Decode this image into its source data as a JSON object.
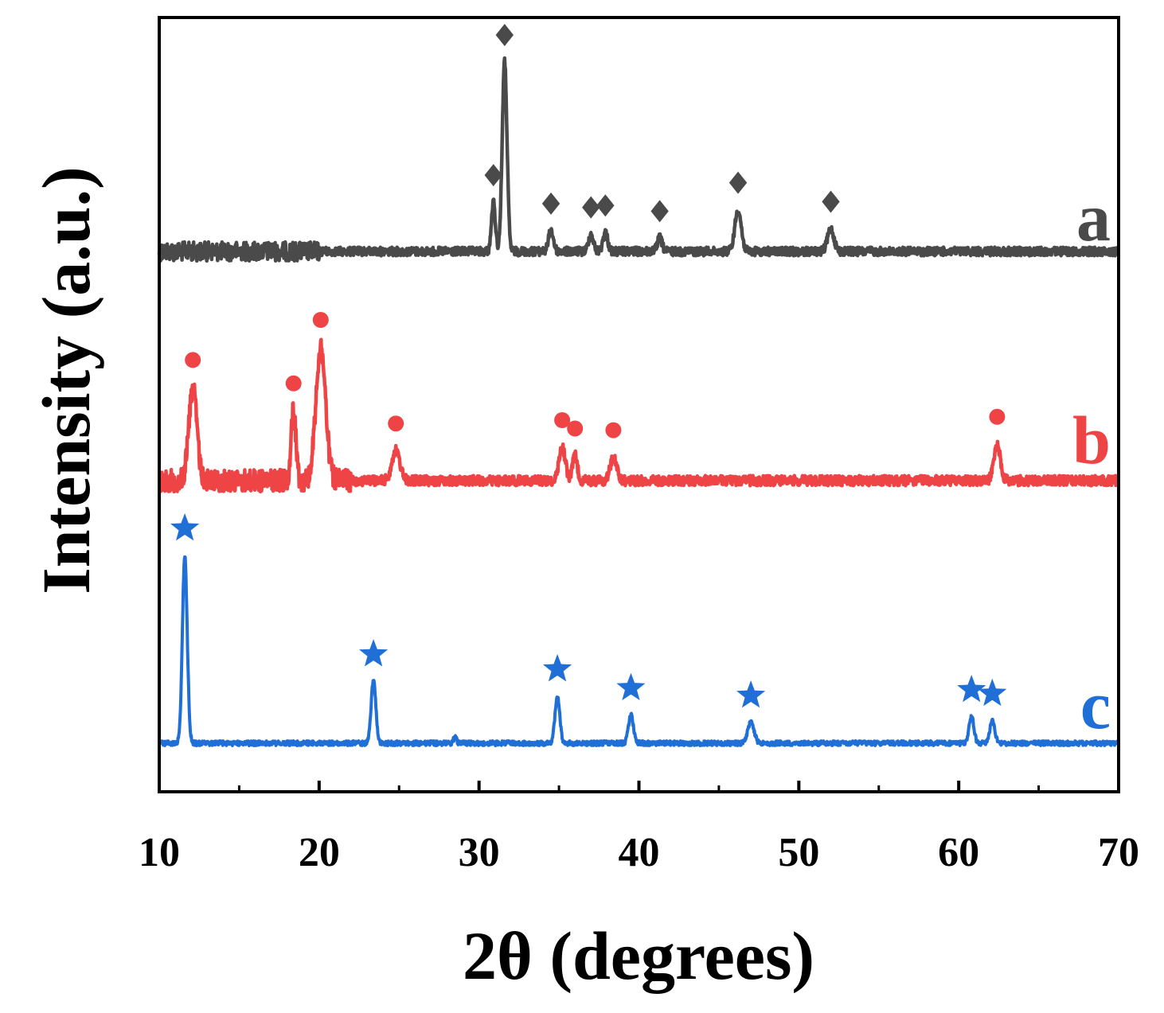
{
  "chart_data": {
    "type": "line",
    "title": "",
    "xlabel": "2θ (degrees)",
    "ylabel": "Intensity (a.u.)",
    "xlim": [
      10,
      70
    ],
    "xticks": [
      10,
      20,
      30,
      40,
      50,
      60,
      70
    ],
    "xtick_labels": [
      "10",
      "20",
      "30",
      "40",
      "50",
      "60",
      "70"
    ],
    "yticks_visible": false,
    "series": [
      {
        "name": "a",
        "color": "#4a4a4a",
        "marker": "diamond",
        "baseline": 0,
        "noise": 0.09,
        "noise_until": 20,
        "peaks": [
          {
            "x": 30.9,
            "h": 0.26,
            "w": 0.12,
            "mark": true
          },
          {
            "x": 31.6,
            "h": 1.0,
            "w": 0.15,
            "mark": true
          },
          {
            "x": 34.5,
            "h": 0.11,
            "w": 0.15,
            "mark": true
          },
          {
            "x": 37.0,
            "h": 0.09,
            "w": 0.15,
            "mark": true
          },
          {
            "x": 37.9,
            "h": 0.1,
            "w": 0.15,
            "mark": true
          },
          {
            "x": 41.3,
            "h": 0.07,
            "w": 0.15,
            "mark": true
          },
          {
            "x": 46.2,
            "h": 0.22,
            "w": 0.2,
            "mark": true
          },
          {
            "x": 52.0,
            "h": 0.12,
            "w": 0.2,
            "mark": true
          }
        ]
      },
      {
        "name": "b",
        "color": "#ee4446",
        "marker": "circle",
        "baseline": 0,
        "noise": 0.12,
        "noise_until": 22,
        "peaks": [
          {
            "x": 12.1,
            "h": 0.56,
            "w": 0.25,
            "mark": true
          },
          {
            "x": 18.4,
            "h": 0.42,
            "w": 0.15,
            "mark": true
          },
          {
            "x": 20.1,
            "h": 0.8,
            "w": 0.3,
            "mark": true
          },
          {
            "x": 24.8,
            "h": 0.18,
            "w": 0.25,
            "mark": true
          },
          {
            "x": 35.2,
            "h": 0.2,
            "w": 0.2,
            "mark": true
          },
          {
            "x": 36.0,
            "h": 0.15,
            "w": 0.15,
            "mark": true
          },
          {
            "x": 38.4,
            "h": 0.14,
            "w": 0.2,
            "mark": true
          },
          {
            "x": 62.4,
            "h": 0.22,
            "w": 0.2,
            "mark": true
          }
        ]
      },
      {
        "name": "c",
        "color": "#1f6fd6",
        "marker": "star",
        "baseline": 0,
        "noise": 0.015,
        "noise_until": 70,
        "peaks": [
          {
            "x": 11.6,
            "h": 1.0,
            "w": 0.15,
            "mark": true
          },
          {
            "x": 23.4,
            "h": 0.33,
            "w": 0.15,
            "mark": true
          },
          {
            "x": 28.5,
            "h": 0.03,
            "w": 0.1,
            "mark": false
          },
          {
            "x": 34.9,
            "h": 0.25,
            "w": 0.15,
            "mark": true
          },
          {
            "x": 39.5,
            "h": 0.15,
            "w": 0.15,
            "mark": true
          },
          {
            "x": 47.0,
            "h": 0.11,
            "w": 0.2,
            "mark": true
          },
          {
            "x": 60.8,
            "h": 0.14,
            "w": 0.15,
            "mark": true
          },
          {
            "x": 62.1,
            "h": 0.12,
            "w": 0.15,
            "mark": true
          }
        ]
      }
    ]
  }
}
